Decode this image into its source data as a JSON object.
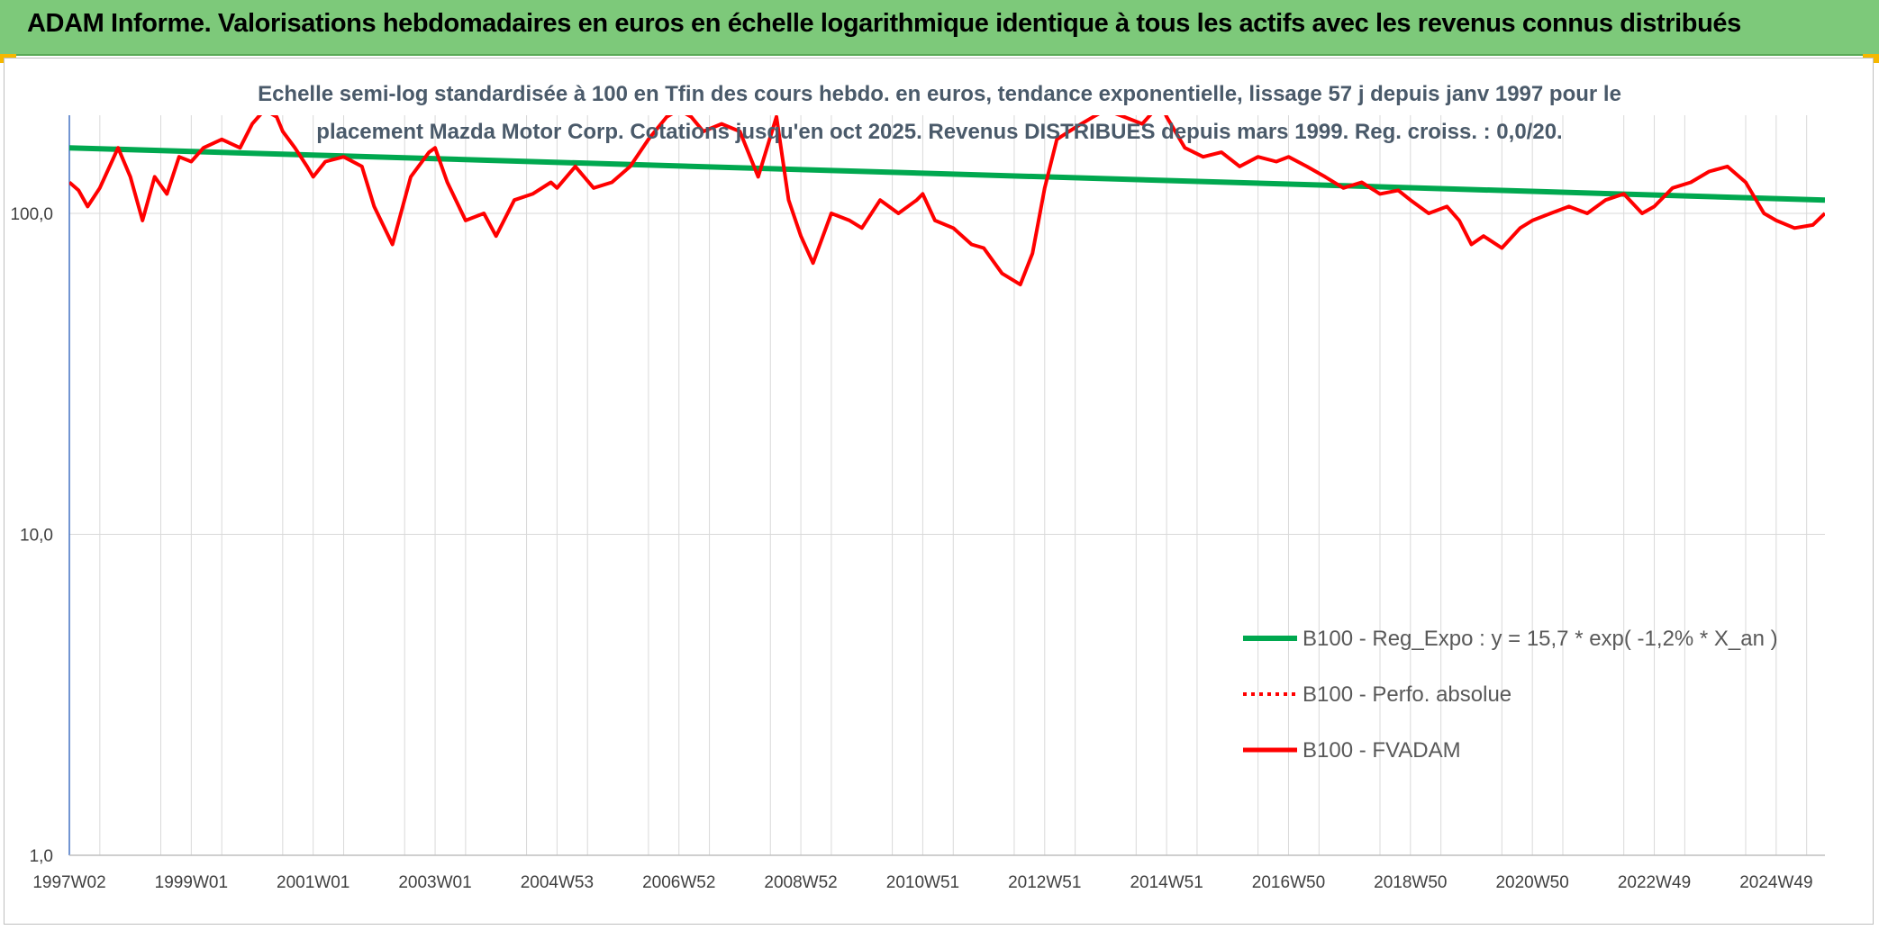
{
  "header": {
    "title": "ADAM Informe. Valorisations hebdomadaires en euros en échelle logarithmique identique à tous les actifs avec les revenus connus distribués"
  },
  "colors": {
    "banner": "#7dc97a",
    "corner_accent": "#f6b800",
    "regression_line": "#00a84f",
    "fvadam_line": "#ff0000",
    "perf_line": "#ff0000",
    "grid": "#d9d9d9",
    "axis": "#4472c4",
    "subtitle": "#4a5a6a"
  },
  "chart_data": {
    "type": "line",
    "title_lines": [
      "Echelle semi-log standardisée à 100 en Tfin des cours hebdo. en euros, tendance exponentielle, lissage 57 j depuis janv 1997 pour le",
      "placement Mazda Motor Corp. Cotations jusqu'en oct 2025. Revenus DISTRIBUES depuis mars 1999. Reg. croiss. : 0,0/20."
    ],
    "y_scale": "log",
    "ylim": [
      1,
      200
    ],
    "y_ticks": [
      {
        "value": 1,
        "label": "1,0"
      },
      {
        "value": 10,
        "label": "10,0"
      },
      {
        "value": 100,
        "label": "100,0"
      }
    ],
    "xlim": [
      1997.0,
      2025.8
    ],
    "x_ticks": [
      {
        "value": 1997.0,
        "label": "1997W02"
      },
      {
        "value": 1999.0,
        "label": "1999W01"
      },
      {
        "value": 2001.0,
        "label": "2001W01"
      },
      {
        "value": 2003.0,
        "label": "2003W01"
      },
      {
        "value": 2005.0,
        "label": "2004W53"
      },
      {
        "value": 2007.0,
        "label": "2006W52"
      },
      {
        "value": 2009.0,
        "label": "2008W52"
      },
      {
        "value": 2011.0,
        "label": "2010W51"
      },
      {
        "value": 2013.0,
        "label": "2012W51"
      },
      {
        "value": 2015.0,
        "label": "2014W51"
      },
      {
        "value": 2017.0,
        "label": "2016W50"
      },
      {
        "value": 2019.0,
        "label": "2018W50"
      },
      {
        "value": 2021.0,
        "label": "2020W50"
      },
      {
        "value": 2023.0,
        "label": "2022W49"
      },
      {
        "value": 2025.0,
        "label": "2024W49"
      }
    ],
    "legend_position": "bottom-right",
    "series": [
      {
        "name": "B100 - Reg_Expo : y = 15,7 * exp( -1,2% *  X_an )",
        "style": "solid",
        "x": [
          1997.0,
          2025.8
        ],
        "y": [
          160,
          110
        ]
      },
      {
        "name": "B100 - Perfo. absolue",
        "style": "dotted",
        "x": [],
        "y": []
      },
      {
        "name": "B100 - FVADAM",
        "style": "solid",
        "x": [
          1997.0,
          1997.15,
          1997.3,
          1997.5,
          1997.8,
          1998.0,
          1998.2,
          1998.4,
          1998.6,
          1998.8,
          1999.0,
          1999.2,
          1999.5,
          1999.8,
          2000.0,
          2000.2,
          2000.4,
          2000.5,
          2000.7,
          2000.9,
          2001.0,
          2001.2,
          2001.5,
          2001.8,
          2002.0,
          2002.3,
          2002.6,
          2002.9,
          2003.0,
          2003.2,
          2003.5,
          2003.8,
          2004.0,
          2004.3,
          2004.6,
          2004.9,
          2005.0,
          2005.3,
          2005.6,
          2005.9,
          2006.2,
          2006.5,
          2006.8,
          2007.0,
          2007.2,
          2007.4,
          2007.7,
          2008.0,
          2008.3,
          2008.6,
          2008.8,
          2009.0,
          2009.2,
          2009.5,
          2009.8,
          2010.0,
          2010.3,
          2010.6,
          2010.9,
          2011.0,
          2011.2,
          2011.5,
          2011.8,
          2012.0,
          2012.3,
          2012.6,
          2012.8,
          2013.0,
          2013.2,
          2013.4,
          2013.6,
          2013.8,
          2014.0,
          2014.3,
          2014.6,
          2014.9,
          2015.0,
          2015.3,
          2015.6,
          2015.9,
          2016.2,
          2016.5,
          2016.8,
          2017.0,
          2017.3,
          2017.6,
          2017.9,
          2018.2,
          2018.5,
          2018.8,
          2019.0,
          2019.3,
          2019.6,
          2019.8,
          2020.0,
          2020.2,
          2020.5,
          2020.8,
          2021.0,
          2021.3,
          2021.6,
          2021.9,
          2022.2,
          2022.5,
          2022.8,
          2023.0,
          2023.3,
          2023.6,
          2023.9,
          2024.2,
          2024.5,
          2024.8,
          2025.0,
          2025.3,
          2025.6,
          2025.8
        ],
        "y": [
          125,
          118,
          105,
          120,
          160,
          130,
          95,
          130,
          115,
          150,
          145,
          160,
          170,
          160,
          190,
          210,
          200,
          180,
          160,
          140,
          130,
          145,
          150,
          140,
          105,
          80,
          130,
          155,
          160,
          125,
          95,
          100,
          85,
          110,
          115,
          125,
          120,
          140,
          120,
          125,
          140,
          170,
          200,
          210,
          200,
          180,
          190,
          180,
          130,
          200,
          110,
          85,
          70,
          100,
          95,
          90,
          110,
          100,
          110,
          115,
          95,
          90,
          80,
          78,
          65,
          60,
          75,
          120,
          170,
          180,
          190,
          200,
          210,
          200,
          190,
          220,
          200,
          160,
          150,
          155,
          140,
          150,
          145,
          150,
          140,
          130,
          120,
          125,
          115,
          118,
          110,
          100,
          105,
          95,
          80,
          85,
          78,
          90,
          95,
          100,
          105,
          100,
          110,
          115,
          100,
          105,
          120,
          125,
          135,
          140,
          125,
          100,
          95,
          90,
          92,
          100
        ]
      }
    ]
  }
}
